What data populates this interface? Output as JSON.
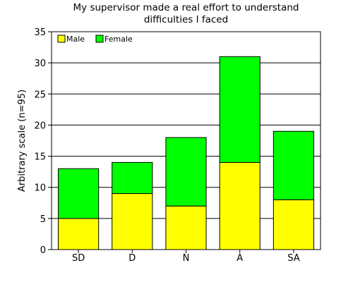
{
  "chart_data": {
    "type": "bar",
    "stacked": true,
    "title_lines": [
      "My supervisor made a real effort to understand",
      "difficulties I faced"
    ],
    "xlabel": "",
    "ylabel": "Arbitrary scale (n=95)",
    "categories": [
      "SD",
      "D",
      "N",
      "A",
      "SA"
    ],
    "series": [
      {
        "name": "Male",
        "color": "#ffff00",
        "values": [
          5,
          9,
          7,
          14,
          8
        ]
      },
      {
        "name": "Female",
        "color": "#00ff00",
        "values": [
          8,
          5,
          11,
          17,
          11
        ]
      }
    ],
    "ylim": [
      0,
      35
    ],
    "yticks": [
      0,
      5,
      10,
      15,
      20,
      25,
      30,
      35
    ],
    "grid": true,
    "legend_position": "top-left"
  }
}
